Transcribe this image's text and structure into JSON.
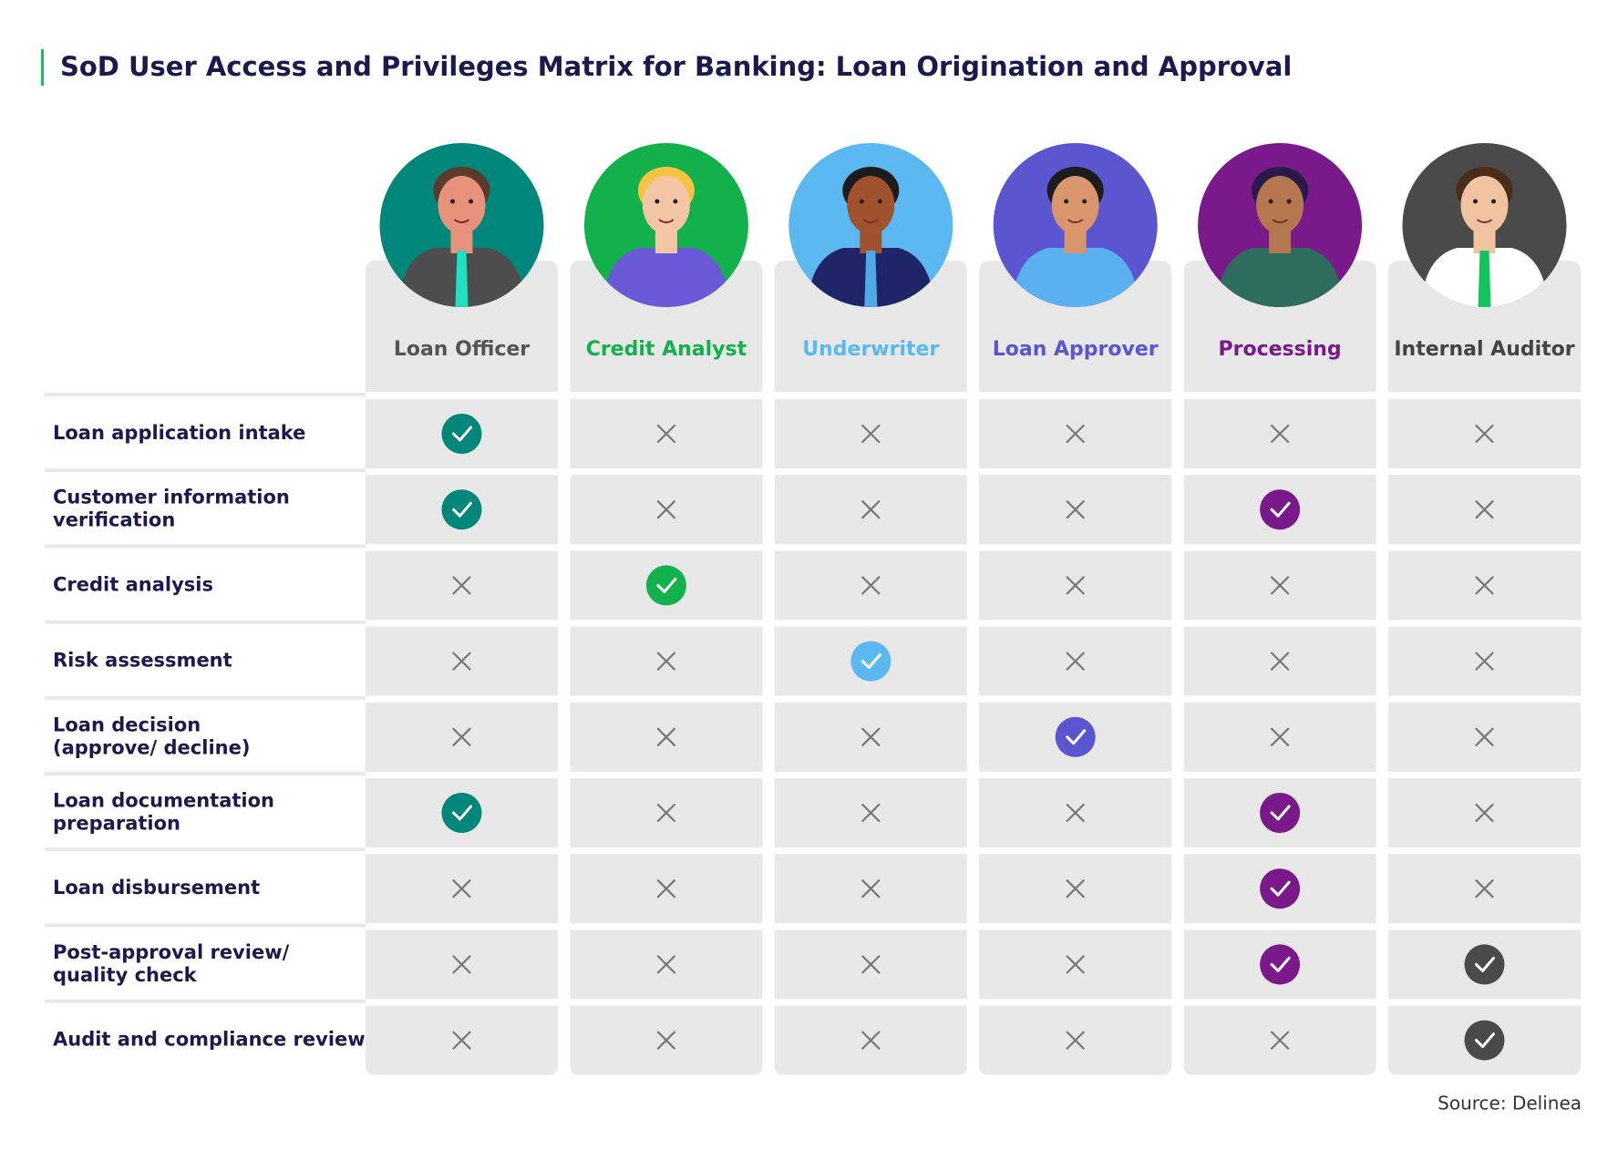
{
  "title": "SoD User Access and Privileges Matrix for Banking: Loan Origination and Approval",
  "roles": [
    {
      "name": "Loan Officer",
      "color": "#00877a",
      "label_color": "#555555"
    },
    {
      "name": "Credit Analyst",
      "color": "#12b14b",
      "label_color": "#12b14b"
    },
    {
      "name": "Underwriter",
      "color": "#5bb8f0",
      "label_color": "#5bb8f0"
    },
    {
      "name": "Loan Approver",
      "color": "#5b55d0",
      "label_color": "#5b55d0"
    },
    {
      "name": "Processing",
      "color": "#7a1a8a",
      "label_color": "#7a1a8a"
    },
    {
      "name": "Internal Auditor",
      "color": "#4a4a4a",
      "label_color": "#444444"
    }
  ],
  "rows": [
    {
      "label": [
        "Loan application intake"
      ],
      "access": [
        true,
        false,
        false,
        false,
        false,
        false
      ]
    },
    {
      "label": [
        "Customer information",
        "verification"
      ],
      "access": [
        true,
        false,
        false,
        false,
        true,
        false
      ]
    },
    {
      "label": [
        "Credit analysis"
      ],
      "access": [
        false,
        true,
        false,
        false,
        false,
        false
      ]
    },
    {
      "label": [
        "Risk assessment"
      ],
      "access": [
        false,
        false,
        true,
        false,
        false,
        false
      ]
    },
    {
      "label": [
        "Loan decision",
        "(approve/ decline)"
      ],
      "access": [
        false,
        false,
        false,
        true,
        false,
        false
      ]
    },
    {
      "label": [
        "Loan documentation",
        "preparation"
      ],
      "access": [
        true,
        false,
        false,
        false,
        true,
        false
      ]
    },
    {
      "label": [
        "Loan disbursement"
      ],
      "access": [
        false,
        false,
        false,
        false,
        true,
        false
      ]
    },
    {
      "label": [
        "Post-approval review/",
        "quality check"
      ],
      "access": [
        false,
        false,
        false,
        false,
        true,
        true
      ]
    },
    {
      "label": [
        "Audit and compliance review"
      ],
      "access": [
        false,
        false,
        false,
        false,
        false,
        true
      ]
    }
  ],
  "source": "Source: Delinea"
}
